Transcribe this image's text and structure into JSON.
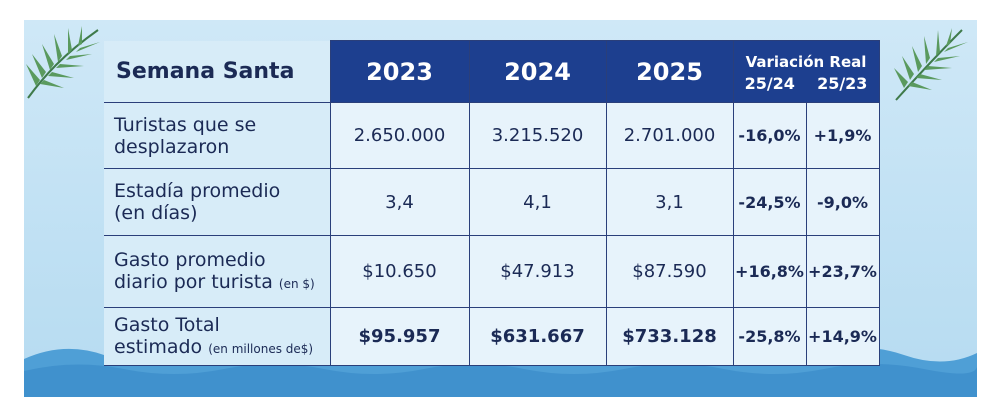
{
  "table": {
    "corner_label": "Semana Santa",
    "years": [
      "2023",
      "2024",
      "2025"
    ],
    "variation_title": "Variación Real",
    "variation_cols": [
      "25/24",
      "25/23"
    ],
    "rows": [
      {
        "label_line1": "Turistas que se",
        "label_line2": "desplazaron",
        "label_note": "",
        "values": [
          "2.650.000",
          "3.215.520",
          "2.701.000"
        ],
        "bold_values": false,
        "var_25_24": "-16,0%",
        "var_25_23": "+1,9%"
      },
      {
        "label_line1": "Estadía promedio",
        "label_line2": "(en días)",
        "label_note": "",
        "values": [
          "3,4",
          "4,1",
          "3,1"
        ],
        "bold_values": false,
        "var_25_24": "-24,5%",
        "var_25_23": "-9,0%"
      },
      {
        "label_line1": "Gasto promedio",
        "label_line2": "diario por turista",
        "label_note": "(en $)",
        "values": [
          "$10.650",
          "$47.913",
          "$87.590"
        ],
        "bold_values": false,
        "var_25_24": "+16,8%",
        "var_25_23": "+23,7%"
      },
      {
        "label_line1": "Gasto Total",
        "label_line2": "estimado",
        "label_note": "(en millones de$)",
        "values": [
          "$95.957",
          "$631.667",
          "$733.128"
        ],
        "bold_values": true,
        "var_25_24": "-25,8%",
        "var_25_23": "+14,9%"
      }
    ]
  },
  "colors": {
    "header_bg": "#1d3f8f",
    "panel_bg": "#cfe8f7",
    "text": "#1b2a55",
    "wave": "#4f9fd6",
    "palm": "#3f7a4a"
  },
  "decor": {
    "left_icon": "palm-leaf-icon",
    "right_icon": "palm-leaf-icon",
    "bottom": "ocean-waves"
  }
}
